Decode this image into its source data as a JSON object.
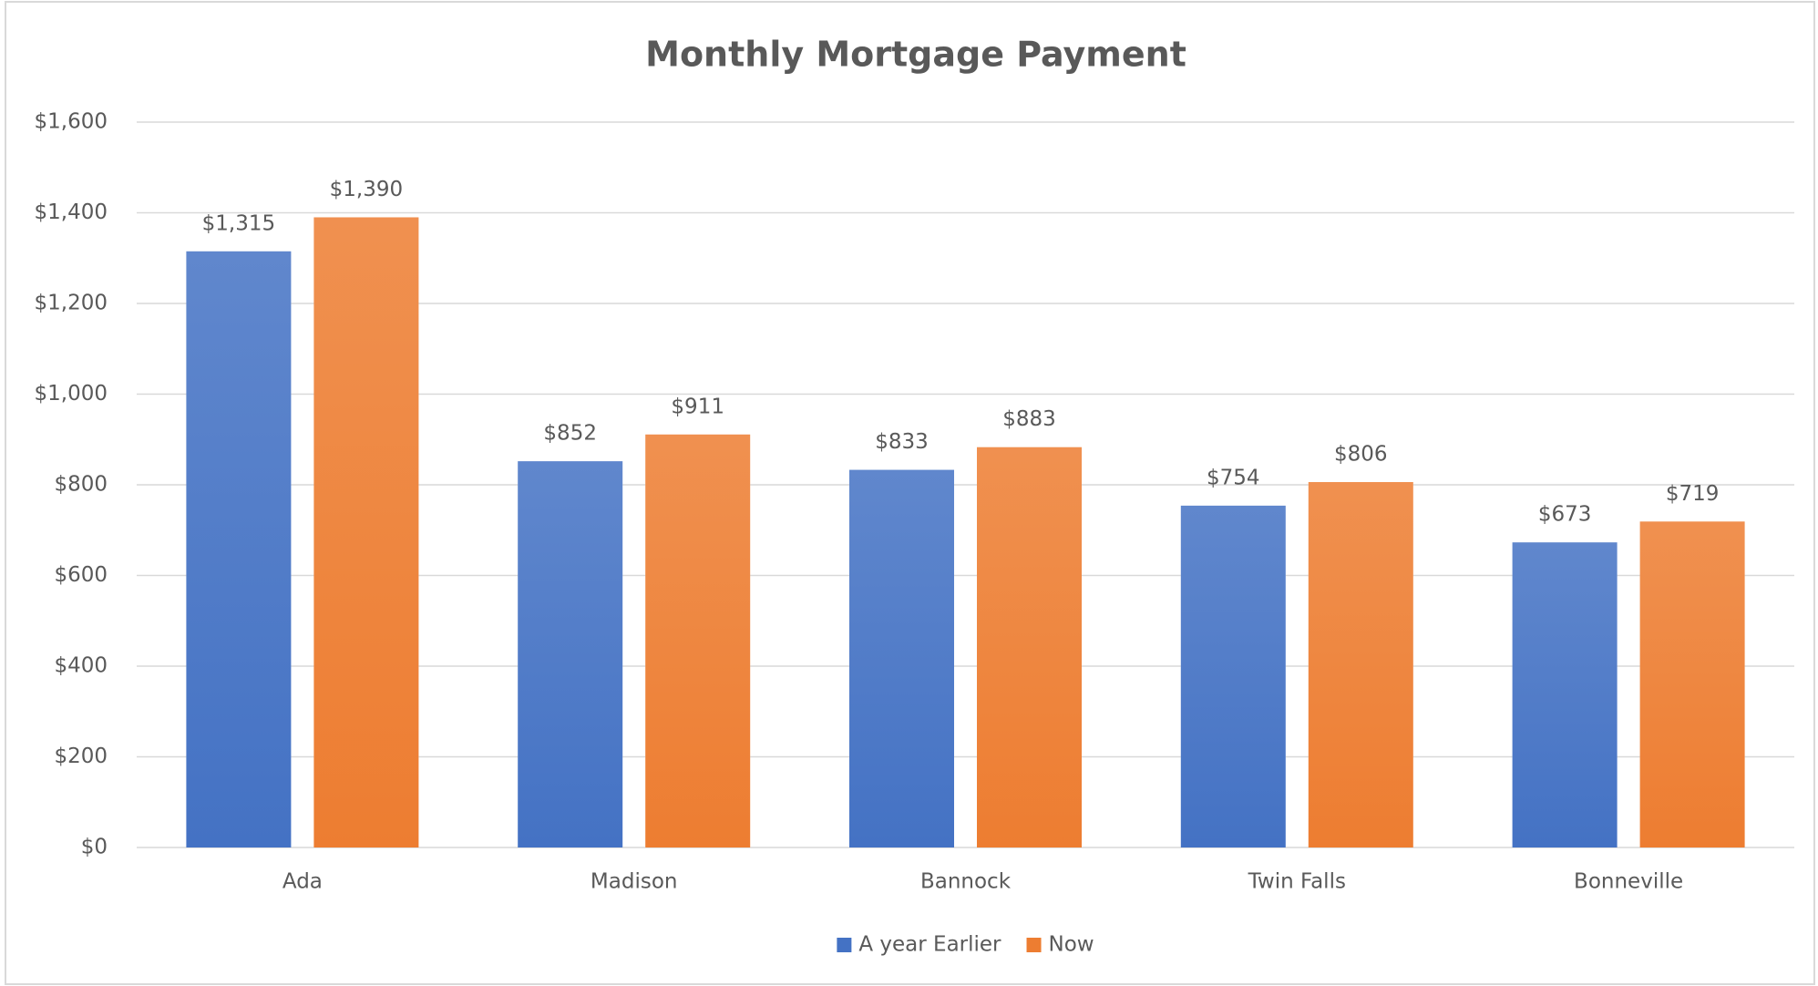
{
  "chart_data": {
    "type": "bar",
    "title": "Monthly Mortgage Payment",
    "categories": [
      "Ada",
      "Madison",
      "Bannock",
      "Twin Falls",
      "Bonneville"
    ],
    "series": [
      {
        "name": "A year Earlier",
        "color": "#4472c4",
        "values": [
          1315,
          852,
          833,
          754,
          673
        ],
        "value_labels": [
          "$1,315",
          "$852",
          "$833",
          "$754",
          "$673"
        ]
      },
      {
        "name": "Now",
        "color": "#ed7d31",
        "values": [
          1390,
          911,
          883,
          806,
          719
        ],
        "value_labels": [
          "$1,390",
          "$911",
          "$883",
          "$806",
          "$719"
        ]
      }
    ],
    "ylim": [
      0,
      1600
    ],
    "yticks": [
      {
        "value": 0,
        "label": "$0"
      },
      {
        "value": 200,
        "label": "$200"
      },
      {
        "value": 400,
        "label": "$400"
      },
      {
        "value": 600,
        "label": "$600"
      },
      {
        "value": 800,
        "label": "$800"
      },
      {
        "value": 1000,
        "label": "$1,000"
      },
      {
        "value": 1200,
        "label": "$1,200"
      },
      {
        "value": 1400,
        "label": "$1,400"
      },
      {
        "value": 1600,
        "label": "$1,600"
      }
    ],
    "grid": true,
    "legend": "bottom"
  }
}
